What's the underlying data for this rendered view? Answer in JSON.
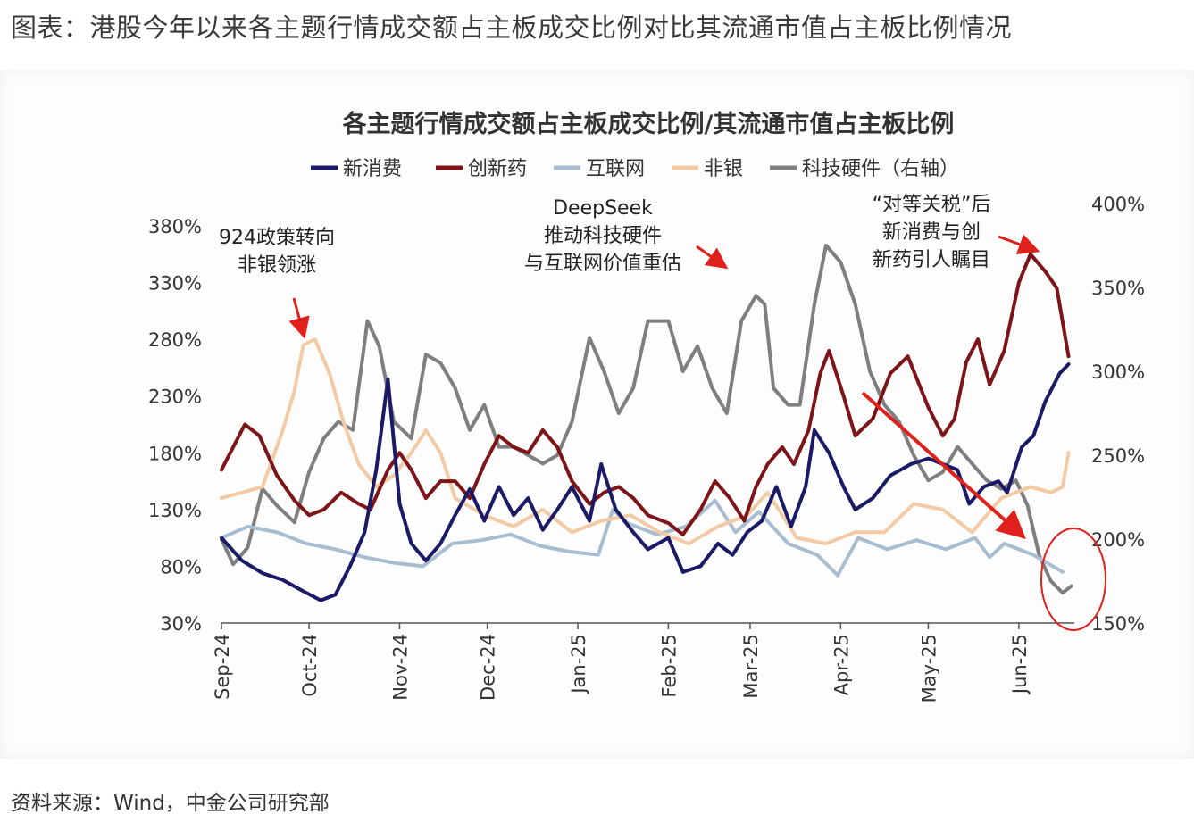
{
  "page": {
    "header": "图表：港股今年以来各主题行情成交额占主板成交比例对比其流通市值占主板比例情况",
    "footer": "资料来源：Wind，中金公司研究部"
  },
  "colors": {
    "新消费": "#1b1a66",
    "创新药": "#7d1418",
    "互联网": "#a9bdd1",
    "非银": "#f2cba6",
    "科技硬件": "#7f7f7f",
    "annotation_arrow": "#e0201b"
  },
  "chart_data": {
    "type": "line",
    "title": "各主题行情成交额占主板成交比例/其流通市值占主板比例",
    "legend_position": "top",
    "grid": false,
    "x_axis": {
      "type": "date",
      "range": [
        "2024-09-01",
        "2025-06-20"
      ],
      "tick_labels": [
        "Sep-24",
        "Oct-24",
        "Nov-24",
        "Dec-24",
        "Jan-25",
        "Feb-25",
        "Mar-25",
        "Apr-25",
        "May-25",
        "Jun-25"
      ],
      "tick_dates": [
        "2024-09-01",
        "2024-10-01",
        "2024-11-01",
        "2024-12-01",
        "2025-01-01",
        "2025-02-01",
        "2025-03-01",
        "2025-04-01",
        "2025-05-01",
        "2025-06-01"
      ]
    },
    "y_left": {
      "range": [
        30,
        380
      ],
      "ticks": [
        30,
        80,
        130,
        180,
        230,
        280,
        330,
        380
      ],
      "tick_labels": [
        "30%",
        "80%",
        "130%",
        "180%",
        "230%",
        "280%",
        "330%",
        "380%"
      ]
    },
    "y_right": {
      "range": [
        150,
        400
      ],
      "ticks": [
        150,
        200,
        250,
        300,
        350,
        400
      ],
      "tick_labels": [
        "150%",
        "200%",
        "250%",
        "300%",
        "350%",
        "400%"
      ]
    },
    "series": [
      {
        "name": "新消费",
        "axis": "left",
        "points": [
          [
            "2024-09-01",
            105
          ],
          [
            "2024-09-08",
            85
          ],
          [
            "2024-09-15",
            74
          ],
          [
            "2024-09-22",
            68
          ],
          [
            "2024-09-29",
            58
          ],
          [
            "2024-10-05",
            50
          ],
          [
            "2024-10-10",
            55
          ],
          [
            "2024-10-15",
            80
          ],
          [
            "2024-10-20",
            110
          ],
          [
            "2024-10-24",
            165
          ],
          [
            "2024-10-28",
            245
          ],
          [
            "2024-11-01",
            135
          ],
          [
            "2024-11-05",
            100
          ],
          [
            "2024-11-10",
            85
          ],
          [
            "2024-11-15",
            100
          ],
          [
            "2024-11-20",
            125
          ],
          [
            "2024-11-25",
            148
          ],
          [
            "2024-11-30",
            120
          ],
          [
            "2024-12-05",
            150
          ],
          [
            "2024-12-10",
            125
          ],
          [
            "2024-12-15",
            140
          ],
          [
            "2024-12-20",
            112
          ],
          [
            "2024-12-25",
            130
          ],
          [
            "2024-12-30",
            150
          ],
          [
            "2025-01-05",
            120
          ],
          [
            "2025-01-09",
            170
          ],
          [
            "2025-01-14",
            130
          ],
          [
            "2025-01-20",
            110
          ],
          [
            "2025-01-25",
            95
          ],
          [
            "2025-02-01",
            105
          ],
          [
            "2025-02-06",
            75
          ],
          [
            "2025-02-12",
            80
          ],
          [
            "2025-02-18",
            100
          ],
          [
            "2025-02-23",
            90
          ],
          [
            "2025-02-28",
            110
          ],
          [
            "2025-03-05",
            120
          ],
          [
            "2025-03-10",
            150
          ],
          [
            "2025-03-15",
            115
          ],
          [
            "2025-03-20",
            150
          ],
          [
            "2025-03-23",
            200
          ],
          [
            "2025-03-28",
            180
          ],
          [
            "2025-04-02",
            150
          ],
          [
            "2025-04-06",
            130
          ],
          [
            "2025-04-12",
            140
          ],
          [
            "2025-04-18",
            160
          ],
          [
            "2025-04-25",
            170
          ],
          [
            "2025-05-01",
            175
          ],
          [
            "2025-05-06",
            170
          ],
          [
            "2025-05-11",
            165
          ],
          [
            "2025-05-15",
            135
          ],
          [
            "2025-05-20",
            150
          ],
          [
            "2025-05-25",
            155
          ],
          [
            "2025-05-28",
            145
          ],
          [
            "2025-06-02",
            185
          ],
          [
            "2025-06-06",
            195
          ],
          [
            "2025-06-10",
            225
          ],
          [
            "2025-06-15",
            250
          ],
          [
            "2025-06-18",
            258
          ]
        ]
      },
      {
        "name": "创新药",
        "axis": "left",
        "points": [
          [
            "2024-09-01",
            165
          ],
          [
            "2024-09-05",
            185
          ],
          [
            "2024-09-09",
            205
          ],
          [
            "2024-09-14",
            195
          ],
          [
            "2024-09-20",
            160
          ],
          [
            "2024-09-26",
            138
          ],
          [
            "2024-10-01",
            125
          ],
          [
            "2024-10-06",
            130
          ],
          [
            "2024-10-12",
            145
          ],
          [
            "2024-10-18",
            135
          ],
          [
            "2024-10-22",
            130
          ],
          [
            "2024-10-28",
            165
          ],
          [
            "2024-11-01",
            180
          ],
          [
            "2024-11-05",
            165
          ],
          [
            "2024-11-10",
            140
          ],
          [
            "2024-11-15",
            155
          ],
          [
            "2024-11-20",
            155
          ],
          [
            "2024-11-25",
            140
          ],
          [
            "2024-11-30",
            170
          ],
          [
            "2024-12-05",
            195
          ],
          [
            "2024-12-10",
            185
          ],
          [
            "2024-12-15",
            180
          ],
          [
            "2024-12-20",
            200
          ],
          [
            "2024-12-25",
            185
          ],
          [
            "2024-12-30",
            155
          ],
          [
            "2025-01-05",
            135
          ],
          [
            "2025-01-10",
            145
          ],
          [
            "2025-01-15",
            150
          ],
          [
            "2025-01-20",
            140
          ],
          [
            "2025-01-25",
            125
          ],
          [
            "2025-02-01",
            118
          ],
          [
            "2025-02-06",
            108
          ],
          [
            "2025-02-12",
            130
          ],
          [
            "2025-02-17",
            155
          ],
          [
            "2025-02-22",
            140
          ],
          [
            "2025-02-27",
            120
          ],
          [
            "2025-03-03",
            150
          ],
          [
            "2025-03-07",
            170
          ],
          [
            "2025-03-12",
            185
          ],
          [
            "2025-03-16",
            170
          ],
          [
            "2025-03-21",
            200
          ],
          [
            "2025-03-25",
            250
          ],
          [
            "2025-03-28",
            270
          ],
          [
            "2025-04-02",
            230
          ],
          [
            "2025-04-06",
            195
          ],
          [
            "2025-04-12",
            210
          ],
          [
            "2025-04-18",
            250
          ],
          [
            "2025-04-24",
            265
          ],
          [
            "2025-05-01",
            220
          ],
          [
            "2025-05-06",
            195
          ],
          [
            "2025-05-10",
            210
          ],
          [
            "2025-05-14",
            260
          ],
          [
            "2025-05-18",
            280
          ],
          [
            "2025-05-22",
            240
          ],
          [
            "2025-05-27",
            270
          ],
          [
            "2025-06-01",
            330
          ],
          [
            "2025-06-05",
            355
          ],
          [
            "2025-06-10",
            340
          ],
          [
            "2025-06-14",
            325
          ],
          [
            "2025-06-18",
            265
          ]
        ]
      },
      {
        "name": "互联网",
        "axis": "left",
        "points": [
          [
            "2024-09-01",
            105
          ],
          [
            "2024-09-10",
            115
          ],
          [
            "2024-09-20",
            110
          ],
          [
            "2024-09-30",
            100
          ],
          [
            "2024-10-10",
            95
          ],
          [
            "2024-10-20",
            88
          ],
          [
            "2024-10-30",
            83
          ],
          [
            "2024-11-09",
            80
          ],
          [
            "2024-11-19",
            100
          ],
          [
            "2024-11-29",
            103
          ],
          [
            "2024-12-09",
            108
          ],
          [
            "2024-12-19",
            98
          ],
          [
            "2024-12-29",
            93
          ],
          [
            "2025-01-08",
            90
          ],
          [
            "2025-01-13",
            130
          ],
          [
            "2025-01-18",
            118
          ],
          [
            "2025-01-28",
            108
          ],
          [
            "2025-02-07",
            115
          ],
          [
            "2025-02-17",
            138
          ],
          [
            "2025-02-24",
            110
          ],
          [
            "2025-03-04",
            128
          ],
          [
            "2025-03-14",
            100
          ],
          [
            "2025-03-24",
            90
          ],
          [
            "2025-03-31",
            72
          ],
          [
            "2025-04-07",
            105
          ],
          [
            "2025-04-17",
            95
          ],
          [
            "2025-04-27",
            103
          ],
          [
            "2025-05-07",
            95
          ],
          [
            "2025-05-17",
            105
          ],
          [
            "2025-05-22",
            88
          ],
          [
            "2025-05-27",
            100
          ],
          [
            "2025-06-06",
            90
          ],
          [
            "2025-06-16",
            75
          ]
        ]
      },
      {
        "name": "非银",
        "axis": "left",
        "points": [
          [
            "2024-09-01",
            140
          ],
          [
            "2024-09-08",
            145
          ],
          [
            "2024-09-15",
            150
          ],
          [
            "2024-09-22",
            200
          ],
          [
            "2024-09-26",
            235
          ],
          [
            "2024-09-29",
            275
          ],
          [
            "2024-10-03",
            280
          ],
          [
            "2024-10-08",
            250
          ],
          [
            "2024-10-13",
            205
          ],
          [
            "2024-10-18",
            170
          ],
          [
            "2024-10-24",
            150
          ],
          [
            "2024-10-30",
            160
          ],
          [
            "2024-11-05",
            180
          ],
          [
            "2024-11-10",
            200
          ],
          [
            "2024-11-15",
            180
          ],
          [
            "2024-11-20",
            140
          ],
          [
            "2024-11-30",
            125
          ],
          [
            "2024-12-10",
            115
          ],
          [
            "2024-12-20",
            130
          ],
          [
            "2024-12-30",
            110
          ],
          [
            "2025-01-09",
            120
          ],
          [
            "2025-01-19",
            125
          ],
          [
            "2025-01-29",
            110
          ],
          [
            "2025-02-08",
            100
          ],
          [
            "2025-02-18",
            115
          ],
          [
            "2025-02-28",
            125
          ],
          [
            "2025-03-07",
            145
          ],
          [
            "2025-03-17",
            105
          ],
          [
            "2025-03-27",
            100
          ],
          [
            "2025-04-06",
            110
          ],
          [
            "2025-04-16",
            110
          ],
          [
            "2025-04-26",
            135
          ],
          [
            "2025-05-06",
            130
          ],
          [
            "2025-05-16",
            110
          ],
          [
            "2025-05-26",
            140
          ],
          [
            "2025-06-05",
            150
          ],
          [
            "2025-06-12",
            145
          ],
          [
            "2025-06-16",
            150
          ],
          [
            "2025-06-18",
            180
          ]
        ]
      },
      {
        "name": "科技硬件（右轴）",
        "axis": "right",
        "points": [
          [
            "2024-09-01",
            200
          ],
          [
            "2024-09-05",
            185
          ],
          [
            "2024-09-10",
            195
          ],
          [
            "2024-09-15",
            230
          ],
          [
            "2024-09-20",
            220
          ],
          [
            "2024-09-26",
            210
          ],
          [
            "2024-10-01",
            240
          ],
          [
            "2024-10-06",
            260
          ],
          [
            "2024-10-11",
            270
          ],
          [
            "2024-10-16",
            265
          ],
          [
            "2024-10-21",
            330
          ],
          [
            "2024-10-25",
            315
          ],
          [
            "2024-10-30",
            270
          ],
          [
            "2024-11-05",
            260
          ],
          [
            "2024-11-10",
            310
          ],
          [
            "2024-11-15",
            305
          ],
          [
            "2024-11-20",
            290
          ],
          [
            "2024-11-25",
            265
          ],
          [
            "2024-11-30",
            280
          ],
          [
            "2024-12-05",
            255
          ],
          [
            "2024-12-10",
            255
          ],
          [
            "2024-12-15",
            250
          ],
          [
            "2024-12-20",
            245
          ],
          [
            "2024-12-25",
            250
          ],
          [
            "2024-12-30",
            270
          ],
          [
            "2025-01-05",
            320
          ],
          [
            "2025-01-10",
            300
          ],
          [
            "2025-01-15",
            275
          ],
          [
            "2025-01-20",
            290
          ],
          [
            "2025-01-25",
            330
          ],
          [
            "2025-02-01",
            330
          ],
          [
            "2025-02-06",
            300
          ],
          [
            "2025-02-11",
            315
          ],
          [
            "2025-02-16",
            290
          ],
          [
            "2025-02-21",
            275
          ],
          [
            "2025-02-26",
            330
          ],
          [
            "2025-03-03",
            345
          ],
          [
            "2025-03-06",
            340
          ],
          [
            "2025-03-09",
            290
          ],
          [
            "2025-03-14",
            280
          ],
          [
            "2025-03-18",
            280
          ],
          [
            "2025-03-23",
            340
          ],
          [
            "2025-03-27",
            375
          ],
          [
            "2025-04-01",
            365
          ],
          [
            "2025-04-06",
            340
          ],
          [
            "2025-04-11",
            300
          ],
          [
            "2025-04-16",
            280
          ],
          [
            "2025-04-21",
            270
          ],
          [
            "2025-04-26",
            250
          ],
          [
            "2025-05-01",
            235
          ],
          [
            "2025-05-06",
            240
          ],
          [
            "2025-05-11",
            255
          ],
          [
            "2025-05-16",
            245
          ],
          [
            "2025-05-21",
            235
          ],
          [
            "2025-05-26",
            230
          ],
          [
            "2025-05-31",
            235
          ],
          [
            "2025-06-04",
            220
          ],
          [
            "2025-06-08",
            190
          ],
          [
            "2025-06-12",
            175
          ],
          [
            "2025-06-16",
            168
          ],
          [
            "2025-06-19",
            172
          ]
        ]
      }
    ],
    "annotations": [
      {
        "lines": [
          "924政策转向",
          "非银领涨"
        ]
      },
      {
        "lines": [
          "DeepSeek",
          "推动科技硬件",
          "与互联网价值重估"
        ]
      },
      {
        "lines": [
          "“对等关税”后",
          "新消费与创",
          "新药引人瞩目"
        ]
      }
    ]
  }
}
